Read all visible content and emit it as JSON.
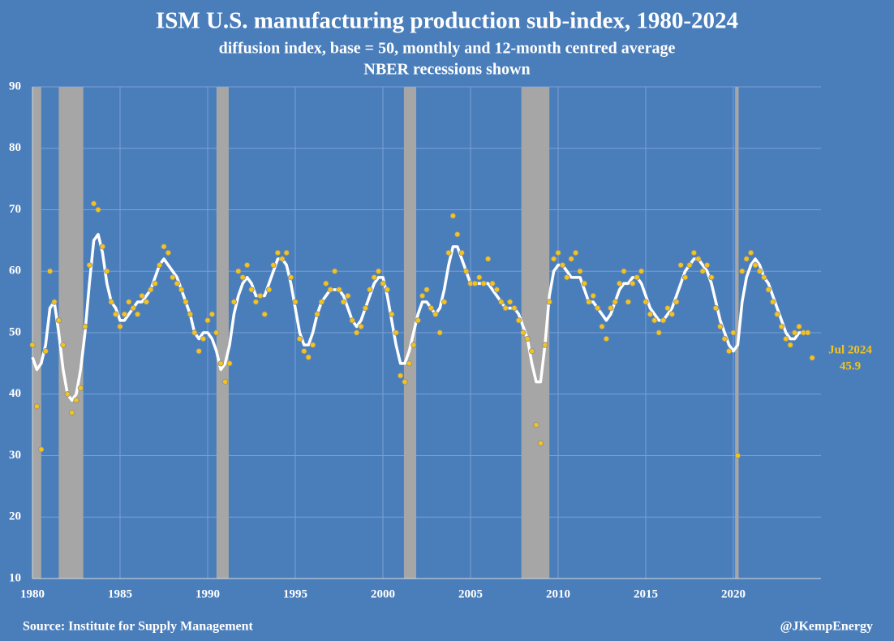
{
  "chart_data": {
    "type": "scatter",
    "title": "ISM U.S. manufacturing production sub-index, 1980-2024",
    "subtitle": [
      "diffusion index, base = 50, monthly and 12-month centred average",
      "NBER recessions shown"
    ],
    "source": "Source: Institute for Supply Management",
    "credit": "@JKempEnergy",
    "annotation": {
      "text": "Jul 2024",
      "value": 45.9,
      "color": "#f2c41c"
    },
    "xlim": [
      1980,
      2025
    ],
    "ylim": [
      10,
      90
    ],
    "xticks": [
      1980,
      1985,
      1990,
      1995,
      2000,
      2005,
      2010,
      2015,
      2020
    ],
    "yticks": [
      10,
      20,
      30,
      40,
      50,
      60,
      70,
      80,
      90
    ],
    "grid": true,
    "background": "#4a7ebb",
    "recession_color": "#a6a6a6",
    "recessions": [
      [
        1980.0,
        1980.5
      ],
      [
        1981.5,
        1982.9
      ],
      [
        1990.5,
        1991.2
      ],
      [
        2001.2,
        2001.9
      ],
      [
        2007.9,
        2009.5
      ],
      [
        2020.1,
        2020.3
      ]
    ],
    "x": [
      1980,
      1980.25,
      1980.5,
      1980.75,
      1981,
      1981.25,
      1981.5,
      1981.75,
      1982,
      1982.25,
      1982.5,
      1982.75,
      1983,
      1983.25,
      1983.5,
      1983.75,
      1984,
      1984.25,
      1984.5,
      1984.75,
      1985,
      1985.25,
      1985.5,
      1985.75,
      1986,
      1986.25,
      1986.5,
      1986.75,
      1987,
      1987.25,
      1987.5,
      1987.75,
      1988,
      1988.25,
      1988.5,
      1988.75,
      1989,
      1989.25,
      1989.5,
      1989.75,
      1990,
      1990.25,
      1990.5,
      1990.75,
      1991,
      1991.25,
      1991.5,
      1991.75,
      1992,
      1992.25,
      1992.5,
      1992.75,
      1993,
      1993.25,
      1993.5,
      1993.75,
      1994,
      1994.25,
      1994.5,
      1994.75,
      1995,
      1995.25,
      1995.5,
      1995.75,
      1996,
      1996.25,
      1996.5,
      1996.75,
      1997,
      1997.25,
      1997.5,
      1997.75,
      1998,
      1998.25,
      1998.5,
      1998.75,
      1999,
      1999.25,
      1999.5,
      1999.75,
      2000,
      2000.25,
      2000.5,
      2000.75,
      2001,
      2001.25,
      2001.5,
      2001.75,
      2002,
      2002.25,
      2002.5,
      2002.75,
      2003,
      2003.25,
      2003.5,
      2003.75,
      2004,
      2004.25,
      2004.5,
      2004.75,
      2005,
      2005.25,
      2005.5,
      2005.75,
      2006,
      2006.25,
      2006.5,
      2006.75,
      2007,
      2007.25,
      2007.5,
      2007.75,
      2008,
      2008.25,
      2008.5,
      2008.75,
      2009,
      2009.25,
      2009.5,
      2009.75,
      2010,
      2010.25,
      2010.5,
      2010.75,
      2011,
      2011.25,
      2011.5,
      2011.75,
      2012,
      2012.25,
      2012.5,
      2012.75,
      2013,
      2013.25,
      2013.5,
      2013.75,
      2014,
      2014.25,
      2014.5,
      2014.75,
      2015,
      2015.25,
      2015.5,
      2015.75,
      2016,
      2016.25,
      2016.5,
      2016.75,
      2017,
      2017.25,
      2017.5,
      2017.75,
      2018,
      2018.25,
      2018.5,
      2018.75,
      2019,
      2019.25,
      2019.5,
      2019.75,
      2020,
      2020.25,
      2020.5,
      2020.75,
      2021,
      2021.25,
      2021.5,
      2021.75,
      2022,
      2022.25,
      2022.5,
      2022.75,
      2023,
      2023.25,
      2023.5,
      2023.75,
      2024,
      2024.25,
      2024.5
    ],
    "series": [
      {
        "kind": "dots",
        "color": "#f2c41c",
        "edge": "#8c8c8c",
        "values": [
          48,
          38,
          31,
          47,
          60,
          55,
          52,
          48,
          40,
          37,
          39,
          41,
          51,
          61,
          71,
          70,
          64,
          60,
          55,
          53,
          51,
          53,
          55,
          54,
          53,
          56,
          55,
          57,
          58,
          61,
          64,
          63,
          59,
          58,
          57,
          55,
          53,
          50,
          47,
          49,
          52,
          53,
          50,
          45,
          42,
          45,
          55,
          60,
          59,
          61,
          57,
          55,
          56,
          53,
          57,
          61,
          63,
          62,
          63,
          59,
          55,
          49,
          47,
          46,
          48,
          53,
          55,
          58,
          57,
          60,
          57,
          55,
          56,
          52,
          50,
          51,
          54,
          57,
          59,
          60,
          58,
          57,
          53,
          50,
          43,
          42,
          45,
          48,
          52,
          56,
          57,
          54,
          53,
          50,
          55,
          63,
          69,
          66,
          63,
          60,
          58,
          58,
          59,
          58,
          62,
          58,
          57,
          55,
          54,
          55,
          54,
          52,
          50,
          49,
          47,
          35,
          32,
          48,
          55,
          62,
          63,
          61,
          59,
          62,
          63,
          60,
          58,
          55,
          56,
          54,
          51,
          49,
          54,
          55,
          58,
          60,
          55,
          58,
          59,
          60,
          55,
          53,
          52,
          50,
          52,
          54,
          53,
          55,
          61,
          59,
          61,
          63,
          62,
          60,
          61,
          59,
          54,
          51,
          49,
          47,
          50,
          30,
          60,
          62,
          63,
          61,
          60,
          59,
          57,
          55,
          53,
          51,
          49,
          48,
          50,
          51,
          50,
          50,
          45.9
        ]
      },
      {
        "kind": "line",
        "color": "#ffffff",
        "values": [
          46,
          44,
          45,
          48,
          54,
          55,
          50,
          44,
          40,
          39,
          40,
          44,
          50,
          58,
          65,
          66,
          63,
          58,
          55,
          54,
          52,
          52,
          53,
          54,
          55,
          55,
          56,
          57,
          59,
          61,
          62,
          61,
          60,
          59,
          57,
          55,
          53,
          50,
          49,
          50,
          50,
          49,
          47,
          44,
          45,
          48,
          53,
          56,
          58,
          59,
          58,
          56,
          56,
          56,
          58,
          60,
          62,
          62,
          61,
          58,
          54,
          50,
          48,
          48,
          50,
          53,
          55,
          56,
          57,
          57,
          57,
          56,
          54,
          52,
          51,
          52,
          54,
          56,
          58,
          59,
          59,
          56,
          52,
          48,
          45,
          45,
          47,
          50,
          53,
          55,
          55,
          54,
          53,
          54,
          57,
          61,
          64,
          64,
          62,
          60,
          58,
          58,
          58,
          58,
          58,
          57,
          56,
          55,
          54,
          54,
          54,
          53,
          51,
          49,
          45,
          42,
          42,
          48,
          56,
          60,
          61,
          61,
          60,
          59,
          59,
          59,
          57,
          55,
          55,
          54,
          53,
          52,
          53,
          55,
          57,
          58,
          58,
          59,
          59,
          58,
          56,
          54,
          53,
          52,
          52,
          53,
          54,
          56,
          58,
          60,
          61,
          62,
          62,
          61,
          60,
          58,
          55,
          52,
          50,
          48,
          47,
          48,
          55,
          59,
          61,
          62,
          61,
          59,
          58,
          56,
          54,
          52,
          50,
          49,
          49,
          50,
          50,
          null,
          null
        ]
      }
    ]
  }
}
